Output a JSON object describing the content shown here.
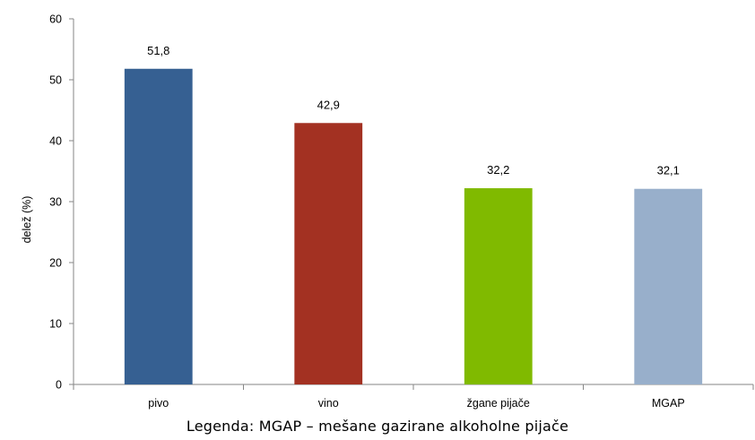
{
  "chart_data": {
    "type": "bar",
    "categories": [
      "pivo",
      "vino",
      "žgane pijače",
      "MGAP"
    ],
    "values": [
      51.8,
      42.9,
      32.2,
      32.1
    ],
    "value_labels": [
      "51,8",
      "42,9",
      "32,2",
      "32,1"
    ],
    "colors": [
      "#366092",
      "#A33122",
      "#80BA00",
      "#98AFCB"
    ],
    "ylabel": "delež (%)",
    "xlabel": "",
    "ylim": [
      0,
      60
    ],
    "yticks": [
      0,
      10,
      20,
      30,
      40,
      50,
      60
    ],
    "grid": false,
    "legend": "none"
  },
  "note": "Legenda: MGAP – mešane gazirane alkoholne pijače"
}
